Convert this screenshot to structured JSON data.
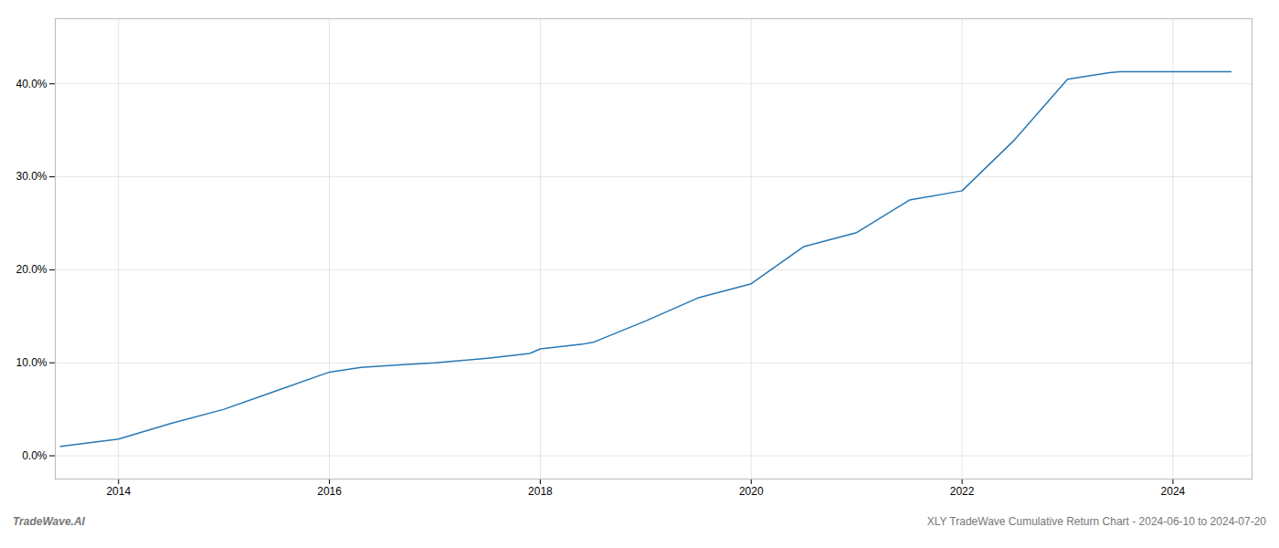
{
  "chart_data": {
    "type": "line",
    "title": "XLY TradeWave Cumulative Return Chart - 2024-06-10 to 2024-07-20",
    "annotations": [
      "TradeWave.AI"
    ],
    "color": "#2878b5",
    "x": [
      2013.45,
      2014.0,
      2014.5,
      2015.0,
      2015.5,
      2016.0,
      2016.3,
      2016.7,
      2017.0,
      2017.5,
      2017.9,
      2018.0,
      2018.4,
      2018.5,
      2019.0,
      2019.5,
      2020.0,
      2020.5,
      2021.0,
      2021.5,
      2022.0,
      2022.5,
      2023.0,
      2023.4,
      2023.5,
      2024.0,
      2024.55
    ],
    "values": [
      1.0,
      1.8,
      3.5,
      5.0,
      7.0,
      9.0,
      9.5,
      9.8,
      10.0,
      10.5,
      11.0,
      11.5,
      12.0,
      12.2,
      14.5,
      17.0,
      18.5,
      22.5,
      24.0,
      27.5,
      28.5,
      34.0,
      40.5,
      41.2,
      41.3,
      41.3,
      41.3
    ],
    "xlim": [
      2013.4,
      2024.75
    ],
    "ylim": [
      -2.5,
      47
    ],
    "xticks": [
      2014,
      2016,
      2018,
      2020,
      2022,
      2024
    ],
    "yticks": [
      {
        "value": 0,
        "label": "0.0%"
      },
      {
        "value": 10,
        "label": "10.0%"
      },
      {
        "value": 20,
        "label": "20.0%"
      },
      {
        "value": 30,
        "label": "30.0%"
      },
      {
        "value": 40,
        "label": "40.0%"
      }
    ],
    "grid": true
  }
}
